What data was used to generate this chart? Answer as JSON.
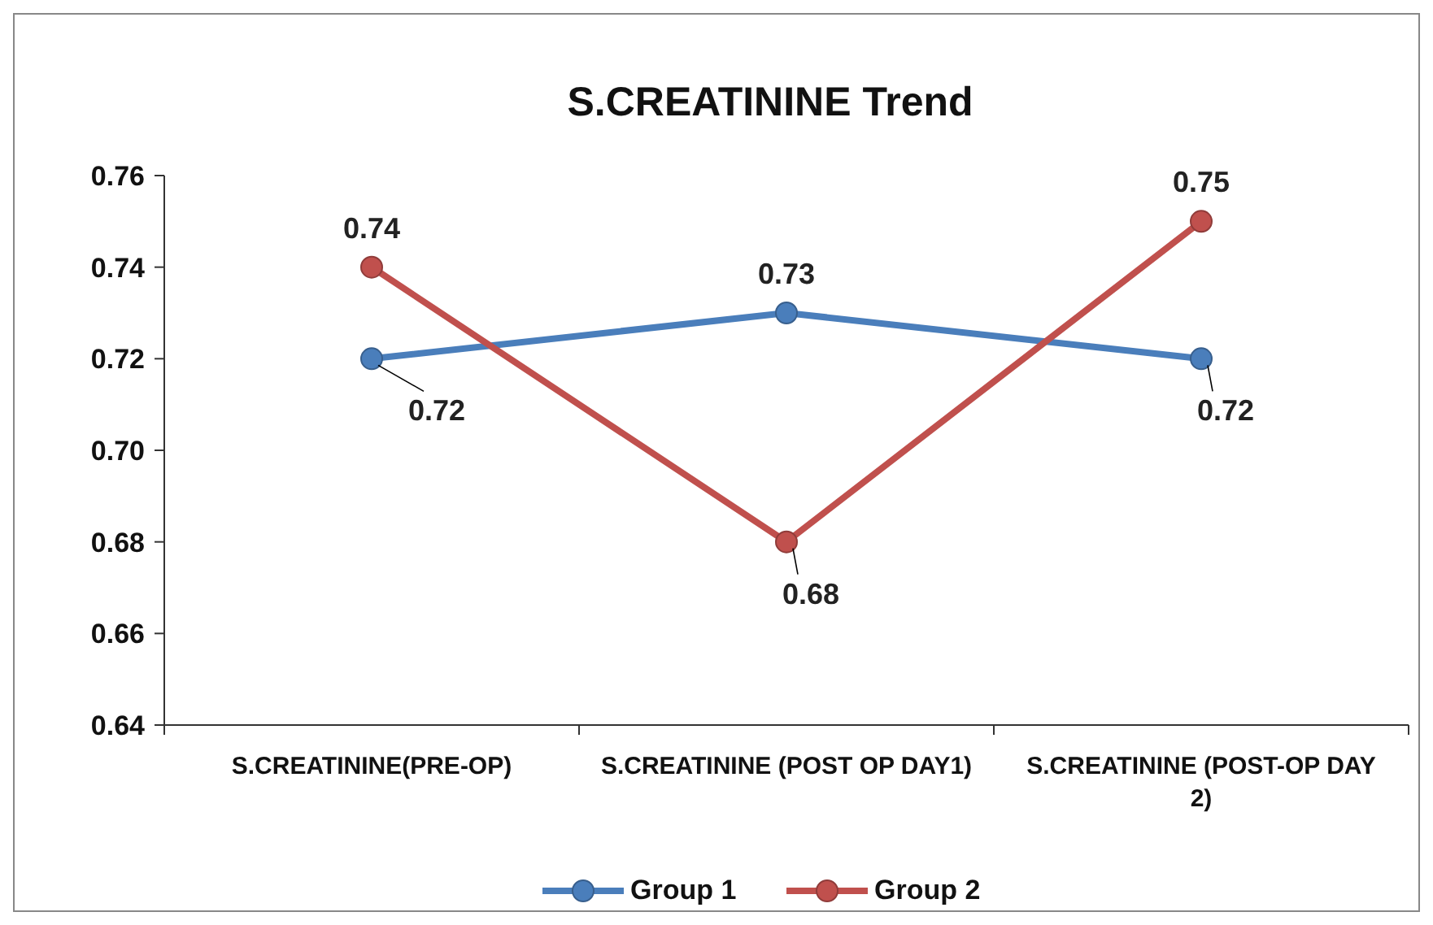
{
  "chart_data": {
    "type": "line",
    "title": "S.CREATININE Trend",
    "categories": [
      "S.CREATININE(PRE-OP)",
      "S.CREATININE (POST OP DAY1)",
      "S.CREATININE (POST-OP DAY 2)"
    ],
    "series": [
      {
        "name": "Group 1",
        "color": "#4a7ebb",
        "values": [
          0.72,
          0.73,
          0.72
        ]
      },
      {
        "name": "Group 2",
        "color": "#c0504d",
        "values": [
          0.74,
          0.68,
          0.75
        ]
      }
    ],
    "ylim": [
      0.64,
      0.76
    ],
    "yticks": [
      0.64,
      0.66,
      0.68,
      {
        "value": 0.7,
        "label": "0.70"
      },
      0.72,
      0.74,
      0.76
    ],
    "grid": false,
    "legend": "bottom",
    "marker": "circle",
    "line_style": "solid",
    "data_labels": true
  }
}
